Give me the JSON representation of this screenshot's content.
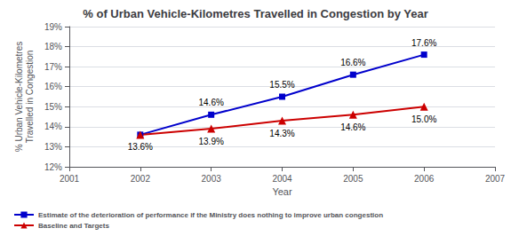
{
  "chart_data": {
    "type": "line",
    "title": "% of Urban Vehicle-Kilometres Travelled in Congestion by Year",
    "x_label": "Year",
    "y_label": "% Urban Vehicle-Kilometres\nTravelled in Congestion",
    "x": [
      2002,
      2003,
      2004,
      2005,
      2006
    ],
    "xlim": [
      2001,
      2007
    ],
    "xticks": [
      2001,
      2002,
      2003,
      2004,
      2005,
      2006,
      2007
    ],
    "ylim": [
      0.12,
      0.19
    ],
    "yticks": [
      {
        "value": 0.12,
        "label": "12%"
      },
      {
        "value": 0.13,
        "label": "13%"
      },
      {
        "value": 0.14,
        "label": "14%"
      },
      {
        "value": 0.15,
        "label": "15%"
      },
      {
        "value": 0.16,
        "label": "16%"
      },
      {
        "value": 0.17,
        "label": "17%"
      },
      {
        "value": 0.18,
        "label": "18%"
      },
      {
        "value": 0.19,
        "label": "19%"
      }
    ],
    "grid": true,
    "legend": "bottom",
    "data_labels": true,
    "series": [
      {
        "name": "Estimate of the deterioration of performance if the Ministry does nothing to improve urban congestion",
        "color": "#0000CC",
        "marker": "square",
        "values": [
          0.136,
          0.146,
          0.155,
          0.166,
          0.176
        ],
        "value_labels": [
          "13.6%",
          "14.6%",
          "15.5%",
          "16.6%",
          "17.6%"
        ]
      },
      {
        "name": "Baseline and Targets",
        "color": "#CC0000",
        "marker": "triangle",
        "values": [
          0.136,
          0.139,
          0.143,
          0.146,
          0.15
        ],
        "value_labels": [
          null,
          "13.9%",
          "14.3%",
          "14.6%",
          "15.0%"
        ]
      }
    ]
  }
}
